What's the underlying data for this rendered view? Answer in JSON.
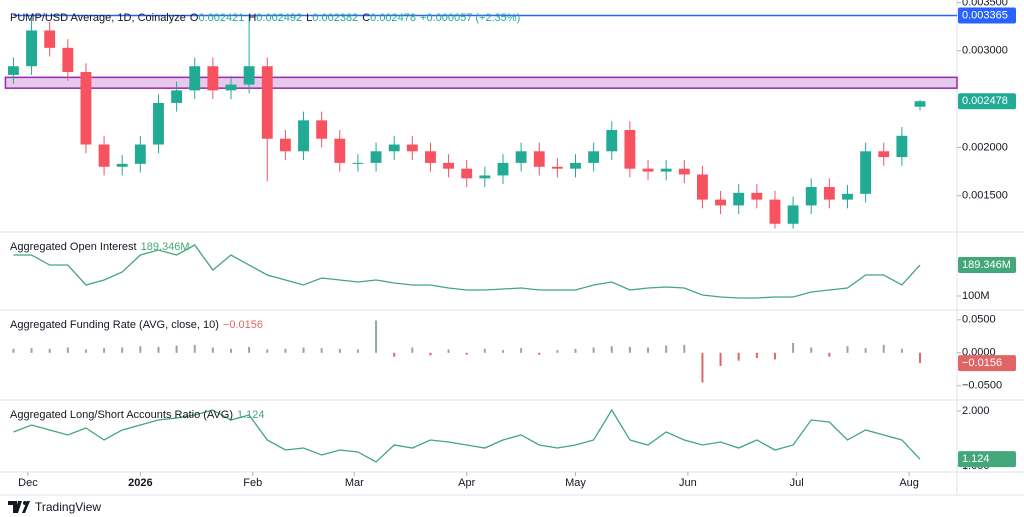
{
  "chart_data": [
    {
      "type": "candlestick",
      "title": "PUMP/USD Average, 1D, Coinalyze",
      "ohlc_labels": [
        "O",
        "H",
        "L",
        "C"
      ],
      "change": "+0.000057 (+2.35%)",
      "x": [
        0,
        5,
        10,
        15,
        20,
        25,
        30,
        35,
        40,
        45,
        50,
        55,
        60,
        65,
        70,
        75,
        80,
        85,
        90,
        95,
        100,
        105,
        110,
        115,
        120,
        125,
        130,
        135,
        140,
        145,
        150,
        155,
        160,
        165,
        170,
        175,
        180,
        185,
        190,
        195,
        200,
        205,
        210,
        215,
        220,
        225,
        230,
        235,
        240,
        245,
        250
      ],
      "xlim": [
        -3.7,
        260.2
      ],
      "xticks": [
        {
          "value": 4,
          "label": "Dec"
        },
        {
          "value": 35,
          "label": "2026"
        },
        {
          "value": 66,
          "label": "Feb"
        },
        {
          "value": 94,
          "label": "Mar"
        },
        {
          "value": 125,
          "label": "Apr"
        },
        {
          "value": 155,
          "label": "May"
        },
        {
          "value": 186,
          "label": "Jun"
        },
        {
          "value": 216,
          "label": "Jul"
        },
        {
          "value": 247,
          "label": "Aug"
        }
      ],
      "open": [
        0.00275,
        0.00284,
        0.00321,
        0.00303,
        0.00278,
        0.00203,
        0.0018,
        0.00183,
        0.00203,
        0.00246,
        0.00259,
        0.00284,
        0.00259,
        0.00265,
        0.00284,
        0.00209,
        0.00196,
        0.00228,
        0.00209,
        0.00184,
        0.00184,
        0.00196,
        0.00203,
        0.00196,
        0.00184,
        0.00178,
        0.00168,
        0.00171,
        0.00184,
        0.00196,
        0.0018,
        0.00178,
        0.00184,
        0.00196,
        0.00218,
        0.00178,
        0.00175,
        0.00178,
        0.00172,
        0.00146,
        0.0014,
        0.00153,
        0.00146,
        0.00121,
        0.0014,
        0.00159,
        0.00146,
        0.00152,
        0.00196,
        0.0019,
        0.002421
      ],
      "high": [
        0.00293,
        0.00338,
        0.0033,
        0.00312,
        0.00287,
        0.00212,
        0.00192,
        0.00212,
        0.00255,
        0.00268,
        0.00293,
        0.00293,
        0.00274,
        0.00338,
        0.00293,
        0.00218,
        0.00237,
        0.00237,
        0.00218,
        0.00193,
        0.00205,
        0.00212,
        0.00212,
        0.00205,
        0.00193,
        0.00187,
        0.0018,
        0.00193,
        0.00205,
        0.00205,
        0.00189,
        0.00193,
        0.00205,
        0.00227,
        0.00227,
        0.00187,
        0.00187,
        0.00187,
        0.00181,
        0.00155,
        0.00162,
        0.00162,
        0.00155,
        0.00149,
        0.00168,
        0.00168,
        0.00161,
        0.00205,
        0.00205,
        0.00221,
        0.002492
      ],
      "low": [
        0.00266,
        0.00275,
        0.00294,
        0.00269,
        0.00194,
        0.00171,
        0.00171,
        0.00174,
        0.00194,
        0.00237,
        0.0025,
        0.0025,
        0.0025,
        0.00256,
        0.00165,
        0.00187,
        0.00187,
        0.002,
        0.00175,
        0.00175,
        0.00175,
        0.00187,
        0.00187,
        0.00175,
        0.00169,
        0.00159,
        0.00159,
        0.00162,
        0.00175,
        0.00171,
        0.00169,
        0.00169,
        0.00175,
        0.00187,
        0.00169,
        0.00166,
        0.00166,
        0.00163,
        0.00137,
        0.00131,
        0.00131,
        0.00137,
        0.00116,
        0.00116,
        0.00131,
        0.00137,
        0.00137,
        0.00143,
        0.00181,
        0.00181,
        0.002382
      ],
      "close": [
        0.00284,
        0.00321,
        0.00303,
        0.00278,
        0.00203,
        0.0018,
        0.00183,
        0.00203,
        0.00246,
        0.00259,
        0.00284,
        0.00259,
        0.00265,
        0.00284,
        0.00209,
        0.00196,
        0.00228,
        0.00209,
        0.00184,
        0.00184,
        0.00196,
        0.00203,
        0.00196,
        0.00184,
        0.00178,
        0.00168,
        0.00171,
        0.00184,
        0.00196,
        0.0018,
        0.00178,
        0.00184,
        0.00196,
        0.00218,
        0.00178,
        0.00175,
        0.00178,
        0.00172,
        0.00146,
        0.0014,
        0.00153,
        0.00146,
        0.00121,
        0.0014,
        0.00159,
        0.00146,
        0.00152,
        0.00196,
        0.0019,
        0.00212,
        0.002478
      ],
      "up_color": "#22ab94",
      "down_color": "#f7525f",
      "ylim": [
        0.001125,
        0.003525
      ],
      "yticks": [
        {
          "value": 0.0035,
          "label": "0.003500"
        },
        {
          "value": 0.003,
          "label": "0.003000"
        },
        {
          "value": 0.002,
          "label": "0.002000"
        },
        {
          "value": 0.0015,
          "label": "0.001500"
        }
      ],
      "hline": 0.003365,
      "hline_color": "#2962ff",
      "zone": [
        0.002613,
        0.002725
      ],
      "zone_color": "#9c27b0"
    },
    {
      "type": "line",
      "title": "Aggregated Open Interest",
      "color": "#43a77a",
      "values": [
        218.2,
        218.2,
        189.3,
        189.3,
        131.7,
        146.1,
        169.2,
        218.2,
        232.6,
        218.2,
        247,
        174.9,
        218.2,
        189.3,
        160.5,
        146.1,
        131.7,
        151.9,
        146.1,
        140.3,
        146.1,
        137.5,
        131.7,
        131.7,
        123,
        117.3,
        117.3,
        120.2,
        123,
        117.3,
        117.3,
        117.3,
        131.7,
        140.3,
        117.3,
        123,
        125.9,
        123,
        102.9,
        97.1,
        94.2,
        94.2,
        97.1,
        97.1,
        111.5,
        117.3,
        123,
        160.5,
        160.5,
        131.7,
        189.346
      ],
      "last_label": "189.346M",
      "ylim": [
        59.6,
        284.5
      ],
      "yticks": [
        {
          "value": 100,
          "label": "100M"
        }
      ]
    },
    {
      "type": "bar",
      "title": "Aggregated Funding Rate (AVG, close, 10)",
      "pos_color": "#91a89c",
      "neg_color": "#e06666",
      "values": [
        0.006,
        0.007,
        0.006,
        0.008,
        0.005,
        0.007,
        0.008,
        0.01,
        0.009,
        0.011,
        0.012,
        0.008,
        0.006,
        0.009,
        0.005,
        0.006,
        0.008,
        0.007,
        0.006,
        0.005,
        0.049,
        -0.006,
        0.008,
        -0.004,
        0.005,
        -0.003,
        0.006,
        0.004,
        0.007,
        -0.003,
        0.004,
        0.006,
        0.008,
        0.01,
        0.009,
        0.008,
        0.011,
        0.012,
        -0.045,
        -0.02,
        -0.012,
        -0.008,
        -0.01,
        0.015,
        0.008,
        -0.006,
        0.01,
        0.007,
        0.012,
        0.006,
        -0.0156
      ],
      "last_label": "−0.0156",
      "ylim": [
        -0.0716,
        0.0649
      ],
      "yticks": [
        {
          "value": 0.05,
          "label": "0.0500"
        },
        {
          "value": 0,
          "label": "0.0000"
        },
        {
          "value": -0.05,
          "label": "−0.0500"
        }
      ]
    },
    {
      "type": "line",
      "title": "Aggregated Long/Short Accounts Ratio (AVG)",
      "color": "#43a77a",
      "values": [
        1.618,
        1.745,
        1.655,
        1.564,
        1.691,
        1.473,
        1.655,
        1.745,
        1.836,
        1.873,
        1.927,
        2.018,
        1.836,
        1.927,
        1.473,
        1.291,
        1.327,
        1.2,
        1.291,
        1.255,
        1.073,
        1.382,
        1.327,
        1.473,
        1.436,
        1.382,
        1.327,
        1.473,
        1.564,
        1.382,
        1.327,
        1.382,
        1.473,
        2.018,
        1.473,
        1.382,
        1.618,
        1.473,
        1.382,
        1.436,
        1.327,
        1.473,
        1.291,
        1.382,
        1.836,
        1.8,
        1.473,
        1.655,
        1.564,
        1.473,
        1.124
      ],
      "ylim": [
        0.891,
        2.2
      ],
      "yticks": [
        {
          "value": 2,
          "label": "2.000"
        },
        {
          "value": 1,
          "label": "1.000"
        }
      ]
    }
  ],
  "footer": {
    "brand": "TradingView"
  }
}
